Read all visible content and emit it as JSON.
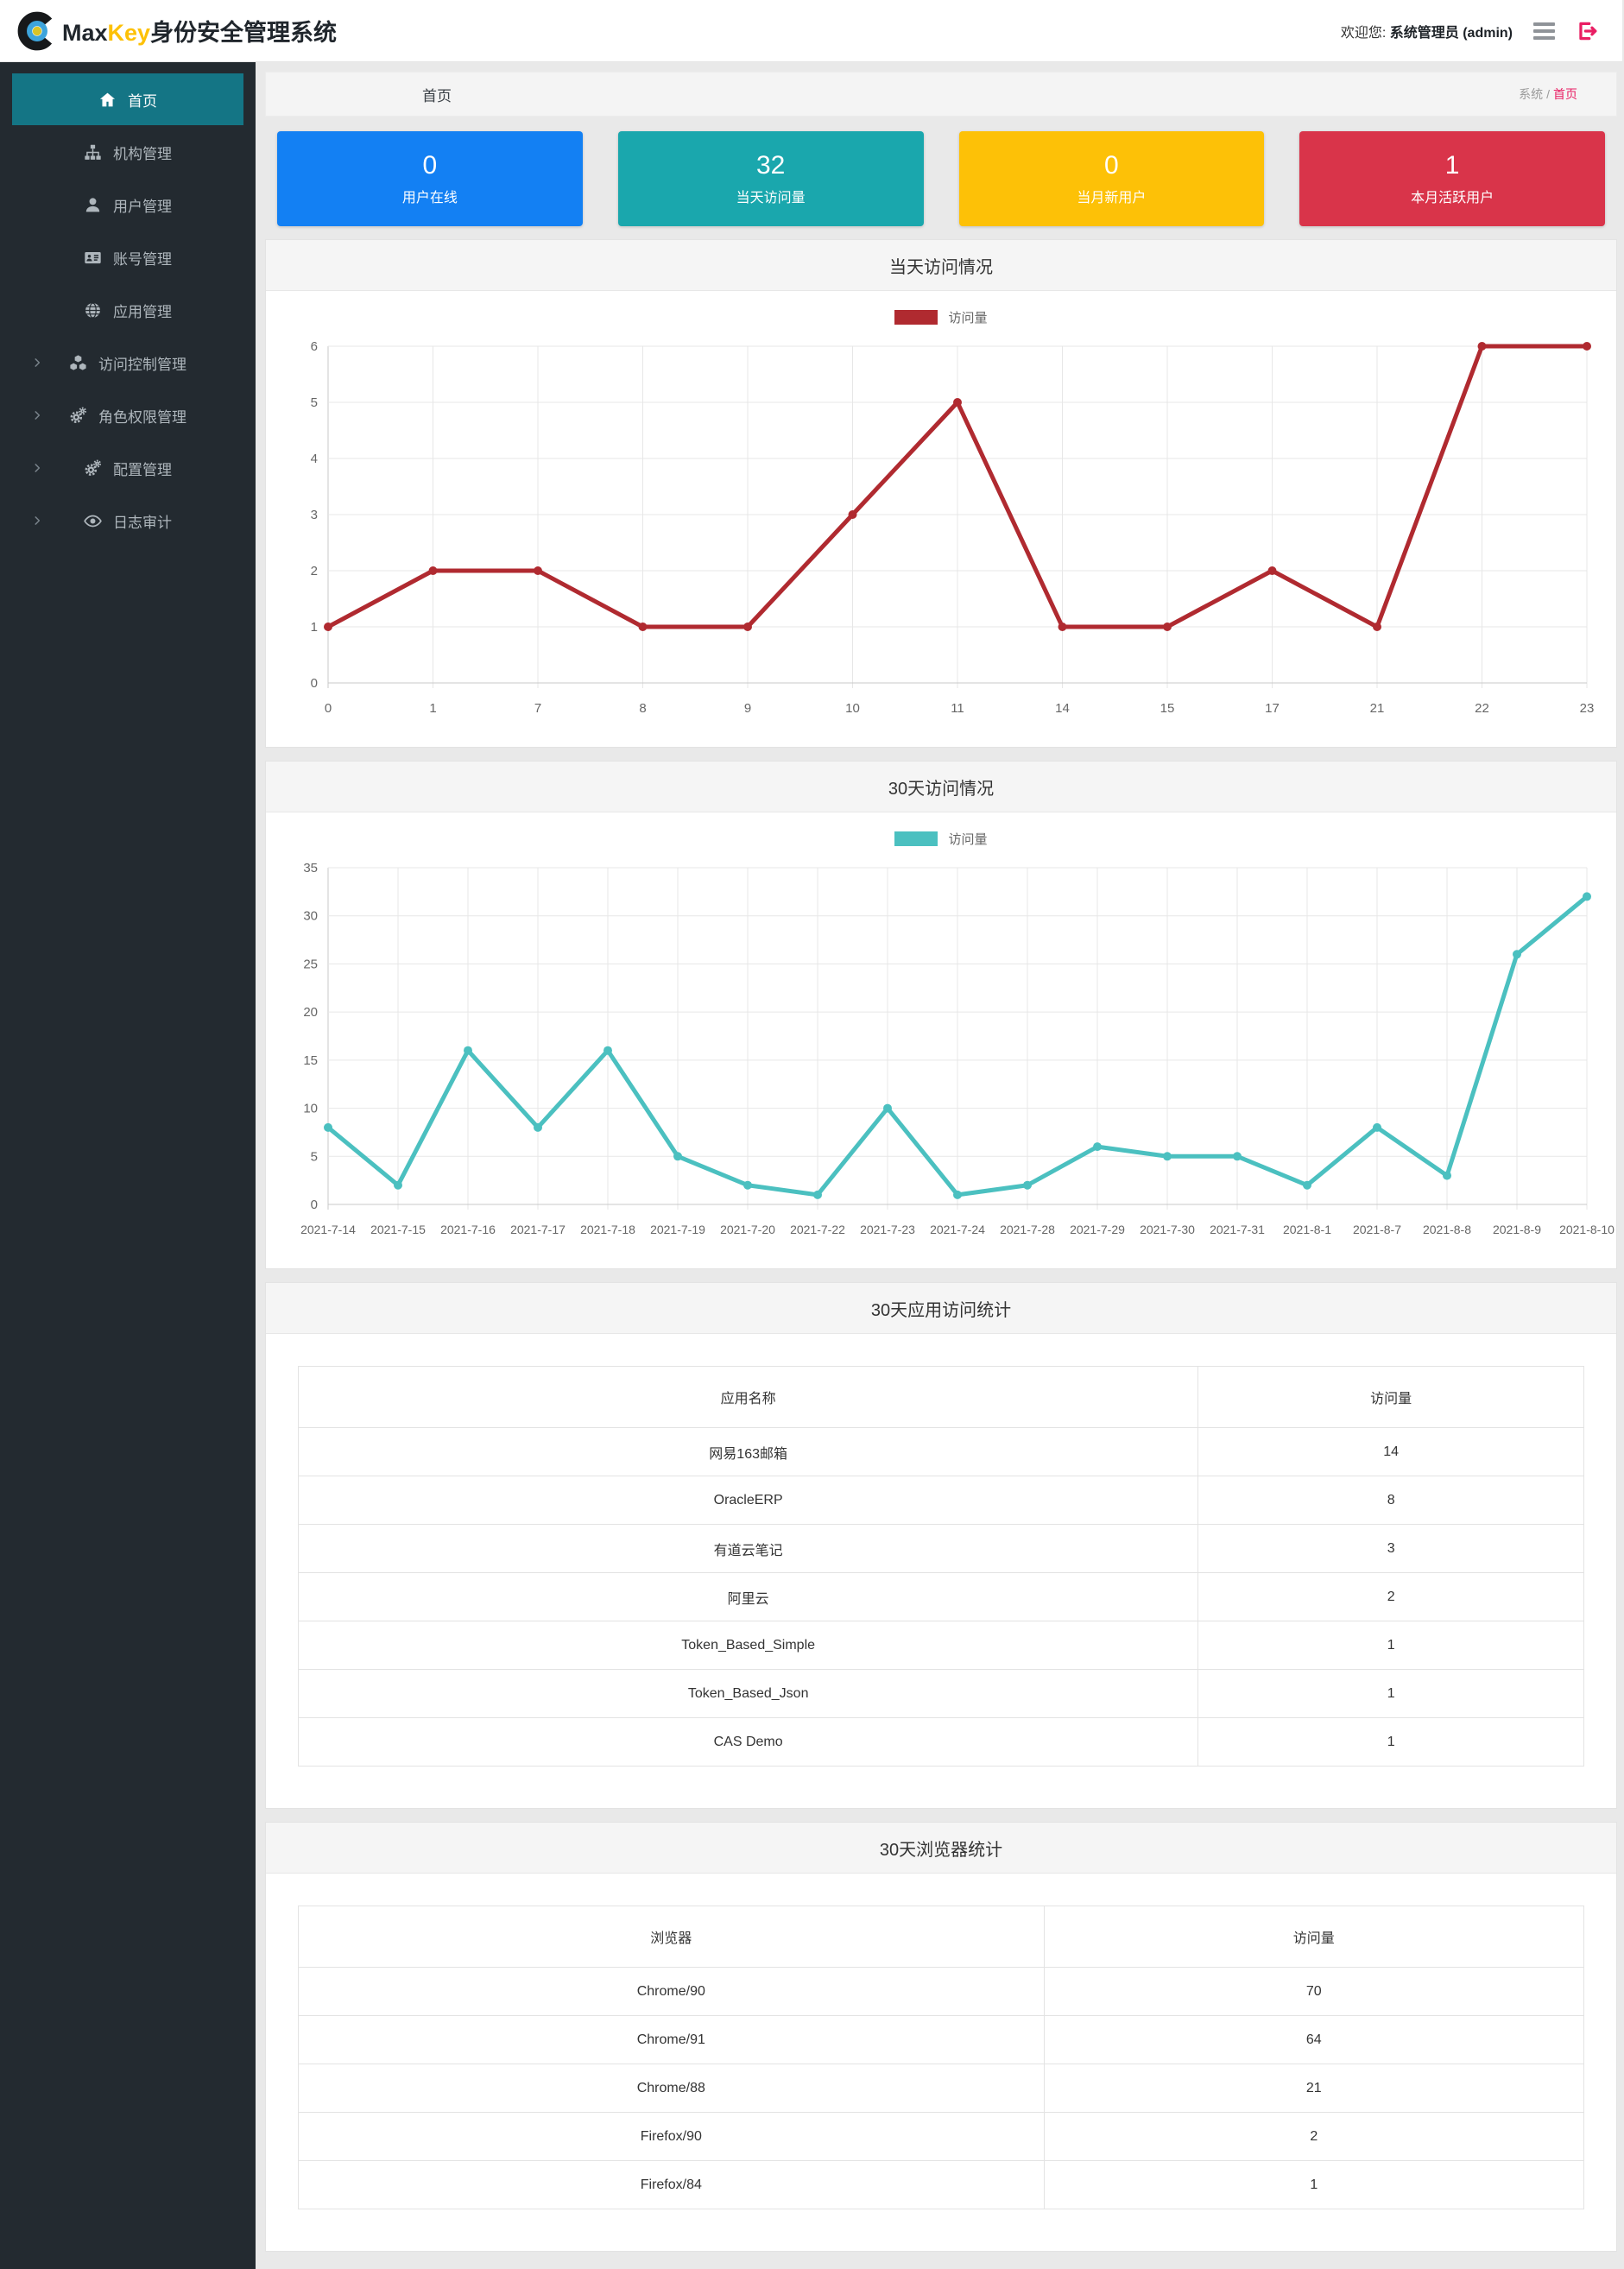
{
  "app_title": "MaxKey身份安全管理系统",
  "header": {
    "brand_max": "Max",
    "brand_key": "Key",
    "brand_suffix": "身份安全管理系统",
    "welcome_prefix": "欢迎您:",
    "welcome_user": "系统管理员 (admin)"
  },
  "sidebar": {
    "items": [
      {
        "key": "home",
        "label": "首页",
        "icon": "home-icon",
        "active": true,
        "expandable": false
      },
      {
        "key": "org",
        "label": "机构管理",
        "icon": "sitemap-icon",
        "active": false,
        "expandable": false
      },
      {
        "key": "user",
        "label": "用户管理",
        "icon": "user-icon",
        "active": false,
        "expandable": false
      },
      {
        "key": "account",
        "label": "账号管理",
        "icon": "idcard-icon",
        "active": false,
        "expandable": false
      },
      {
        "key": "app",
        "label": "应用管理",
        "icon": "globe-icon",
        "active": false,
        "expandable": false
      },
      {
        "key": "access-control",
        "label": "访问控制管理",
        "icon": "cubes-icon",
        "active": false,
        "expandable": true
      },
      {
        "key": "role-permission",
        "label": "角色权限管理",
        "icon": "cogs-icon",
        "active": false,
        "expandable": true
      },
      {
        "key": "config",
        "label": "配置管理",
        "icon": "cogs-icon",
        "active": false,
        "expandable": true
      },
      {
        "key": "audit",
        "label": "日志审计",
        "icon": "eye-icon",
        "active": false,
        "expandable": true
      }
    ]
  },
  "breadcrumb": {
    "page_title": "首页",
    "root": "系统",
    "separator": "/",
    "current": "首页"
  },
  "stat_cards": [
    {
      "key": "users-online",
      "value": "0",
      "label": "用户在线",
      "color": "#1380f3"
    },
    {
      "key": "visits-today",
      "value": "32",
      "label": "当天访问量",
      "color": "#1aa7ad"
    },
    {
      "key": "new-users-month",
      "value": "0",
      "label": "当月新用户",
      "color": "#fdc107"
    },
    {
      "key": "active-users-month",
      "value": "1",
      "label": "本月活跃用户",
      "color": "#d9344a"
    }
  ],
  "chart_data": [
    {
      "type": "line",
      "panel_title": "当天访问情况",
      "legend": "访问量",
      "color": "#b02a30",
      "categories": [
        "0",
        "1",
        "7",
        "8",
        "9",
        "10",
        "11",
        "14",
        "15",
        "17",
        "21",
        "22",
        "23"
      ],
      "values": [
        1,
        2,
        2,
        1,
        1,
        3,
        5,
        1,
        1,
        2,
        1,
        6,
        6
      ],
      "xlabel": "",
      "ylabel": "",
      "ylim": [
        0,
        6
      ],
      "ytick_step": 1,
      "grid": true,
      "legend_position": "top"
    },
    {
      "type": "line",
      "panel_title": "30天访问情况",
      "legend": "访问量",
      "color": "#4bc0c0",
      "categories": [
        "2021-7-14",
        "2021-7-15",
        "2021-7-16",
        "2021-7-17",
        "2021-7-18",
        "2021-7-19",
        "2021-7-20",
        "2021-7-22",
        "2021-7-23",
        "2021-7-24",
        "2021-7-28",
        "2021-7-29",
        "2021-7-30",
        "2021-7-31",
        "2021-8-1",
        "2021-8-7",
        "2021-8-8",
        "2021-8-9",
        "2021-8-10"
      ],
      "values": [
        8,
        2,
        16,
        8,
        16,
        5,
        2,
        1,
        10,
        1,
        2,
        6,
        5,
        5,
        2,
        8,
        3,
        26,
        32
      ],
      "xlabel": "",
      "ylabel": "",
      "ylim": [
        0,
        35
      ],
      "ytick_step": 5,
      "grid": true,
      "legend_position": "top"
    }
  ],
  "tables": [
    {
      "key": "apps",
      "title": "30天应用访问统计",
      "columns": [
        "应用名称",
        "访问量"
      ],
      "rows": [
        [
          "网易163邮箱",
          "14"
        ],
        [
          "OracleERP",
          "8"
        ],
        [
          "有道云笔记",
          "3"
        ],
        [
          "阿里云",
          "2"
        ],
        [
          "Token_Based_Simple",
          "1"
        ],
        [
          "Token_Based_Json",
          "1"
        ],
        [
          "CAS Demo",
          "1"
        ]
      ]
    },
    {
      "key": "browsers",
      "title": "30天浏览器统计",
      "columns": [
        "浏览器",
        "访问量"
      ],
      "rows": [
        [
          "Chrome/90",
          "70"
        ],
        [
          "Chrome/91",
          "64"
        ],
        [
          "Chrome/88",
          "21"
        ],
        [
          "Firefox/90",
          "2"
        ],
        [
          "Firefox/84",
          "1"
        ]
      ]
    }
  ],
  "colors": {
    "sidebar_bg": "#232a30",
    "sidebar_active": "#147585",
    "brand_yellow": "#fdc107",
    "breadcrumb_active": "#e91e63",
    "logout_pink": "#e91e63",
    "page_bg": "#e9e9e9",
    "panel_header_bg": "#f5f5f5"
  }
}
